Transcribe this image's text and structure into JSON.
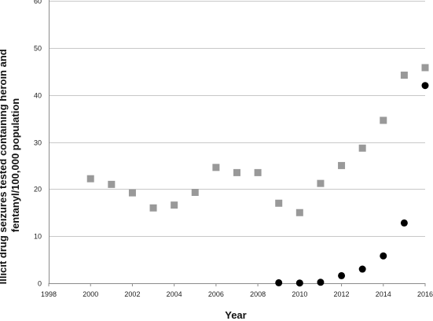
{
  "chart_data": {
    "type": "scatter",
    "title": "",
    "xlabel": "Year",
    "ylabel": "Illicit drug seizures tested containing heroin and fentanyl/100,000 population",
    "xlim": [
      1998,
      2016
    ],
    "ylim": [
      0,
      60
    ],
    "x_ticks": [
      1998,
      2000,
      2002,
      2004,
      2006,
      2008,
      2010,
      2012,
      2014,
      2016
    ],
    "y_ticks": [
      0,
      10,
      20,
      30,
      40,
      50,
      60
    ],
    "grid": "horizontal",
    "legend": "none",
    "series": [
      {
        "marker": "square",
        "color": "#999999",
        "x": [
          2000,
          2001,
          2002,
          2003,
          2004,
          2005,
          2006,
          2007,
          2008,
          2009,
          2010,
          2011,
          2012,
          2013,
          2014,
          2015,
          2016
        ],
        "y": [
          22.2,
          21.0,
          19.2,
          16.0,
          16.6,
          19.3,
          24.6,
          23.5,
          23.5,
          17.0,
          15.0,
          21.2,
          25.0,
          28.7,
          34.6,
          44.2,
          45.8
        ]
      },
      {
        "marker": "circle",
        "color": "#000000",
        "x": [
          2009,
          2010,
          2011,
          2012,
          2013,
          2014,
          2015,
          2016
        ],
        "y": [
          0.1,
          0.05,
          0.2,
          1.6,
          3.0,
          5.8,
          12.8,
          42.0
        ]
      }
    ]
  }
}
